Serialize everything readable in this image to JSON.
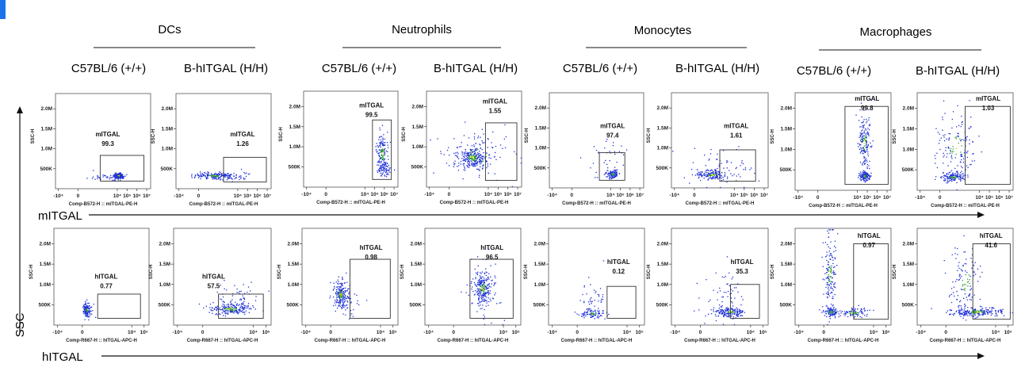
{
  "groups": [
    {
      "label": "DCs"
    },
    {
      "label": "Neutrophils"
    },
    {
      "label": "Monocytes"
    },
    {
      "label": "Macrophages"
    }
  ],
  "columns": [
    {
      "label": "C57BL/6 (+/+)"
    },
    {
      "label": "B-hITGAL (H/H)"
    },
    {
      "label": "C57BL/6 (+/+)"
    },
    {
      "label": "B-hITGAL (H/H)"
    },
    {
      "label": "C57BL/6 (+/+)"
    },
    {
      "label": "B-hITGAL (H/H)"
    },
    {
      "label": "C57BL/6 (+/+)"
    },
    {
      "label": "B-hITGAL (H/H)"
    }
  ],
  "row_labels": {
    "top": "mITGAL",
    "bottom": "hITGAL",
    "y_axis": "SSC"
  },
  "colors": {
    "accent_bar": "#1a73e8",
    "dots": "#1e2fd6",
    "dense": "#2ca02c",
    "core": "#f2c200"
  },
  "chart_data": {
    "type": "scatter",
    "y_axis": {
      "label": "SSC-H",
      "ticks": [
        "500K",
        "1.0M",
        "1.5M",
        "2.0M"
      ]
    },
    "rows": [
      {
        "marker": "mITGAL",
        "x_axis_label": "Comp-B572-H :: mITGAL-PE-H",
        "x_ticks": [
          "-10⁴",
          "0",
          "10⁴",
          "10⁵",
          "10⁶",
          "10⁷"
        ],
        "x_tick_values": [
          -4,
          0,
          4,
          5,
          6,
          7
        ],
        "panels": [
          {
            "gate": "mITGAL",
            "percent": "99.3"
          },
          {
            "gate": "mITGAL",
            "percent": "1.26"
          },
          {
            "gate": "mITGAL",
            "percent": "99.5"
          },
          {
            "gate": "mITGAL",
            "percent": "1.55"
          },
          {
            "gate": "mITGAL",
            "percent": "97.4"
          },
          {
            "gate": "mITGAL",
            "percent": "1.61"
          },
          {
            "gate": "mITGAL",
            "percent": "99.8"
          },
          {
            "gate": "mITGAL",
            "percent": "1.03"
          }
        ]
      },
      {
        "marker": "hITGAL",
        "x_axis_label": "Comp-R667-H :: hITGAL-APC-H",
        "x_ticks": [
          "-10⁴",
          "0",
          "10⁴",
          "10⁵"
        ],
        "x_tick_values": [
          -4,
          0,
          4,
          5
        ],
        "panels": [
          {
            "gate": "hITGAL",
            "percent": "0.77"
          },
          {
            "gate": "hITGAL",
            "percent": "57.5"
          },
          {
            "gate": "hITGAL",
            "percent": "0.98"
          },
          {
            "gate": "hITGAL",
            "percent": "96.5"
          },
          {
            "gate": "hITGAL",
            "percent": "0.12"
          },
          {
            "gate": "hITGAL",
            "percent": "35.3"
          },
          {
            "gate": "hITGAL",
            "percent": "0.97"
          },
          {
            "gate": "hITGAL",
            "percent": "41.6"
          }
        ]
      }
    ]
  }
}
